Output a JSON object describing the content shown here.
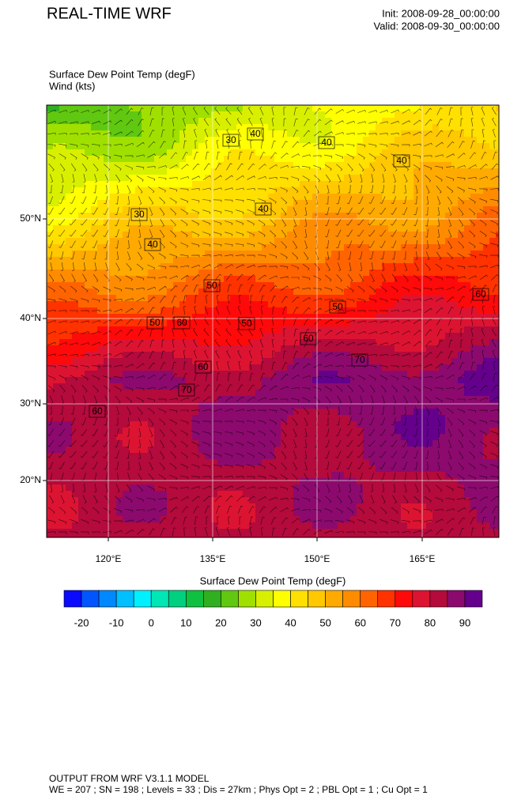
{
  "header": {
    "title": "REAL-TIME WRF",
    "init": "Init: 2008-09-28_00:00:00",
    "valid": "Valid: 2008-09-30_00:00:00"
  },
  "map": {
    "field": "Surface Dew Point Temp   (degF)",
    "wind": "Wind   (kts)",
    "contour_labels": [
      30,
      40,
      40,
      40,
      30,
      40,
      40,
      50,
      50,
      60,
      50,
      60,
      50,
      60,
      70,
      60,
      70,
      60
    ],
    "lat_ticks": [
      {
        "value": 50,
        "label": "50°N"
      },
      {
        "value": 40,
        "label": "40°N"
      },
      {
        "value": 30,
        "label": "30°N"
      },
      {
        "value": 20,
        "label": "20°N"
      }
    ],
    "lon_ticks": [
      {
        "value": 120,
        "label": "120°E"
      },
      {
        "value": 135,
        "label": "135°E"
      },
      {
        "value": 150,
        "label": "150°E"
      },
      {
        "value": 165,
        "label": "165°E"
      }
    ]
  },
  "colorbar": {
    "title": "Surface Dew Point Temp  (degF)",
    "labels": [
      -20,
      -10,
      0,
      10,
      20,
      30,
      40,
      50,
      60,
      70,
      80,
      90
    ],
    "colors": [
      "#0a0aff",
      "#0055ff",
      "#0088ff",
      "#00c0ff",
      "#00f0ff",
      "#00e6b4",
      "#00d080",
      "#10c040",
      "#30b020",
      "#60c810",
      "#a0e000",
      "#d8f000",
      "#ffff00",
      "#ffe000",
      "#ffc800",
      "#ffaa00",
      "#ff8c00",
      "#ff6400",
      "#ff3200",
      "#ff0a0a",
      "#dc1432",
      "#b40a3c",
      "#8c0a6e",
      "#64008c"
    ]
  },
  "footer": {
    "line1": "OUTPUT FROM WRF V3.1.1 MODEL",
    "line2": "WE = 207 ; SN = 198 ; Levels = 33 ; Dis = 27km ; Phys Opt = 2 ; PBL Opt = 1 ; Cu Opt = 1"
  }
}
